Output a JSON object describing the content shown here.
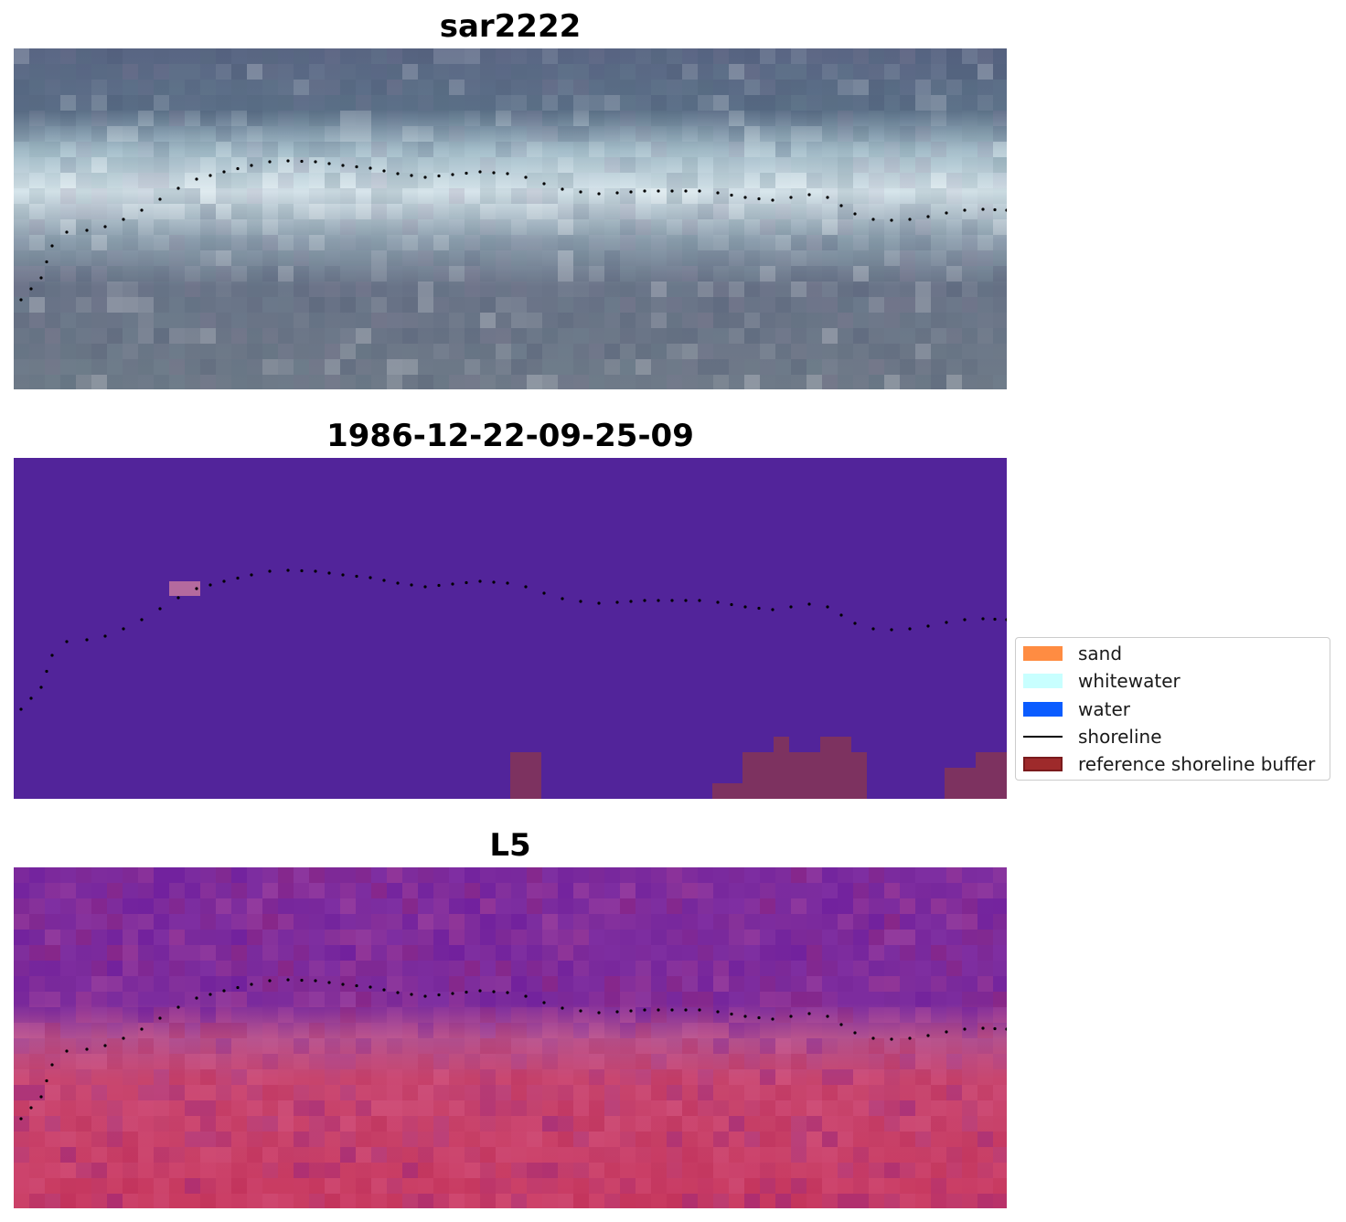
{
  "panels": [
    {
      "title": "sar2222",
      "kind": "rgb"
    },
    {
      "title": "1986-12-22-09-25-09",
      "kind": "classified"
    },
    {
      "title": "L5",
      "kind": "index"
    }
  ],
  "legend": {
    "items": [
      {
        "label": "sand",
        "color": "#ff8c42",
        "shape": "patch"
      },
      {
        "label": "whitewater",
        "color": "#c8ffff",
        "shape": "patch"
      },
      {
        "label": "water",
        "color": "#0a5cff",
        "shape": "patch"
      },
      {
        "label": "shoreline",
        "color": "#000000",
        "shape": "line"
      },
      {
        "label": "reference shoreline buffer",
        "color": "#9e2a2b",
        "shape": "patch"
      }
    ]
  },
  "colors": {
    "classified_background": "#52249a",
    "buffer_overlay": "#7d3260",
    "whitewater_patch": "#b46a9e",
    "shoreline_dots": "#000000"
  }
}
